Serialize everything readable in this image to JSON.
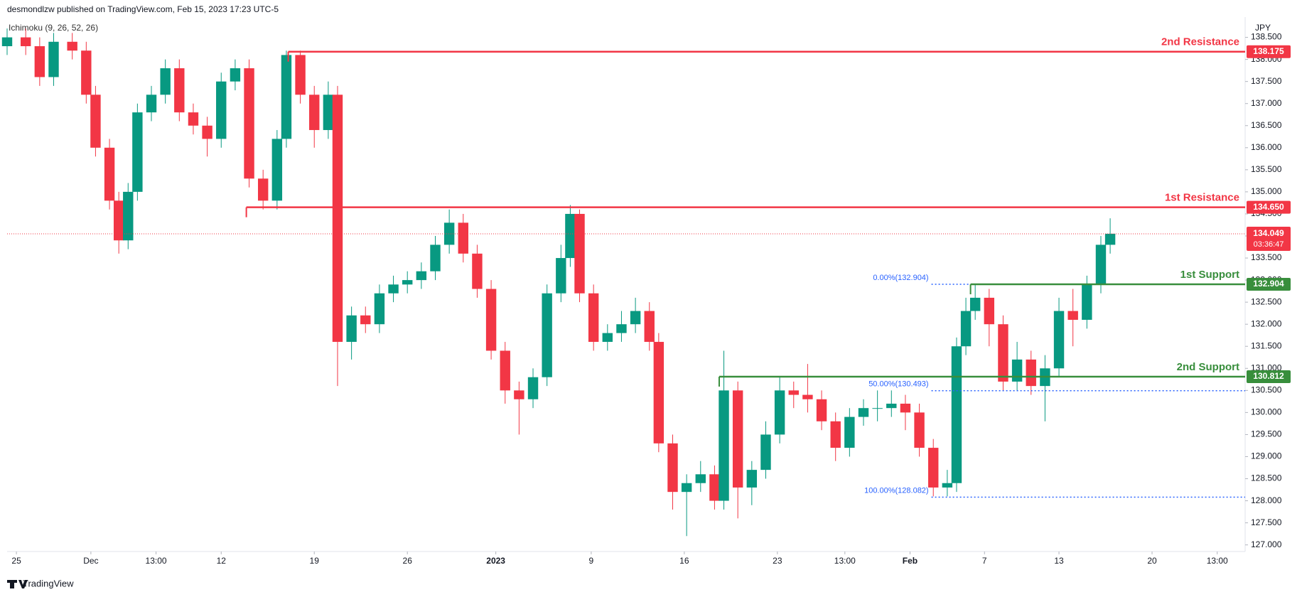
{
  "header": {
    "byline": "desmondlzw published on TradingView.com, Feb 15, 2023 17:23 UTC-5",
    "indicator": "Ichimoku (9, 26, 52, 26)",
    "currency": "JPY",
    "footer": "TradingView"
  },
  "chart_data": {
    "type": "candlestick",
    "x": [
      0,
      4,
      7,
      10,
      14,
      17,
      19,
      22,
      24,
      26,
      28,
      31,
      34,
      37,
      40,
      43,
      46,
      49,
      52,
      55,
      58,
      60,
      63,
      66,
      69,
      71,
      74,
      77,
      80,
      83,
      86,
      89,
      92,
      95,
      98,
      101,
      104,
      107,
      110,
      113,
      116,
      119,
      121,
      123,
      126,
      129,
      132,
      135,
      138,
      140,
      143,
      146,
      149,
      152,
      154,
      157,
      160,
      163,
      166,
      169,
      172,
      175,
      178,
      181,
      184,
      187,
      190,
      193,
      196,
      199,
      202,
      204,
      206,
      208,
      211,
      214,
      217,
      220,
      223,
      226,
      229,
      232,
      235,
      237
    ],
    "open": [
      138.3,
      138.5,
      138.3,
      137.6,
      138.4,
      138.2,
      137.2,
      136.0,
      134.8,
      133.9,
      135.0,
      136.8,
      137.2,
      137.8,
      136.8,
      136.5,
      136.2,
      137.5,
      137.8,
      135.3,
      134.8,
      136.2,
      138.1,
      137.2,
      136.4,
      137.2,
      131.6,
      132.2,
      132.0,
      132.7,
      132.9,
      133.0,
      133.2,
      133.8,
      134.3,
      133.6,
      132.8,
      131.4,
      130.5,
      130.3,
      130.8,
      132.7,
      133.5,
      134.5,
      132.7,
      131.6,
      131.8,
      132.0,
      132.3,
      131.6,
      129.3,
      128.2,
      128.4,
      128.6,
      128.0,
      130.5,
      128.3,
      128.7,
      129.5,
      130.5,
      130.4,
      130.3,
      129.8,
      129.2,
      129.9,
      130.1,
      130.1,
      130.2,
      130.0,
      129.2,
      128.3,
      128.4,
      131.5,
      132.3,
      132.6,
      132.0,
      130.7,
      131.2,
      130.6,
      131.0,
      132.3,
      132.1,
      132.9,
      133.8
    ],
    "high": [
      138.7,
      138.7,
      138.5,
      138.6,
      138.6,
      138.4,
      137.4,
      136.2,
      135.0,
      135.2,
      137.0,
      137.4,
      138.0,
      138.0,
      137.0,
      136.7,
      137.7,
      138.0,
      138.0,
      135.5,
      136.4,
      138.2,
      138.2,
      137.4,
      137.5,
      137.4,
      132.4,
      132.4,
      132.9,
      133.1,
      133.2,
      133.4,
      134.0,
      134.6,
      134.5,
      133.8,
      133.0,
      131.6,
      130.7,
      131.0,
      132.9,
      133.8,
      134.7,
      134.6,
      132.9,
      132.0,
      132.3,
      132.6,
      132.5,
      131.8,
      129.5,
      128.6,
      128.9,
      128.8,
      131.4,
      130.7,
      128.9,
      129.8,
      130.8,
      130.7,
      131.1,
      130.5,
      130.0,
      130.1,
      130.3,
      130.5,
      130.5,
      130.4,
      130.2,
      129.4,
      128.7,
      131.7,
      132.6,
      132.9,
      132.8,
      132.2,
      131.6,
      131.4,
      131.3,
      132.6,
      132.8,
      133.1,
      134.0,
      134.4
    ],
    "low": [
      138.1,
      138.1,
      137.4,
      137.4,
      138.0,
      137.0,
      135.8,
      134.6,
      133.6,
      133.7,
      134.8,
      136.6,
      137.0,
      136.6,
      136.3,
      135.8,
      136.0,
      137.3,
      135.1,
      134.6,
      134.6,
      136.0,
      137.0,
      136.0,
      136.2,
      130.6,
      131.2,
      131.8,
      131.8,
      132.5,
      132.7,
      132.8,
      133.0,
      133.6,
      133.4,
      132.6,
      131.2,
      130.2,
      129.5,
      130.1,
      130.6,
      132.5,
      133.3,
      132.5,
      131.4,
      131.4,
      131.6,
      131.8,
      131.4,
      129.1,
      127.8,
      127.2,
      128.2,
      127.8,
      127.8,
      127.6,
      127.9,
      128.5,
      129.3,
      130.1,
      130.0,
      129.6,
      128.9,
      129.0,
      129.7,
      129.8,
      129.9,
      129.6,
      129.0,
      128.1,
      128.1,
      128.2,
      131.3,
      132.1,
      131.5,
      130.5,
      130.5,
      130.4,
      129.8,
      130.8,
      131.5,
      131.9,
      132.7,
      133.6
    ],
    "close": [
      138.5,
      138.3,
      137.6,
      138.4,
      138.2,
      137.2,
      136.0,
      134.8,
      133.9,
      135.0,
      136.8,
      137.2,
      137.8,
      136.8,
      136.5,
      136.2,
      137.5,
      137.8,
      135.3,
      134.8,
      136.2,
      138.1,
      137.2,
      136.4,
      137.2,
      131.6,
      132.2,
      132.0,
      132.7,
      132.9,
      133.0,
      133.2,
      133.8,
      134.3,
      133.6,
      132.8,
      131.4,
      130.5,
      130.3,
      130.8,
      132.7,
      133.5,
      134.5,
      132.7,
      131.6,
      131.8,
      132.0,
      132.3,
      131.6,
      129.3,
      128.2,
      128.4,
      128.6,
      128.0,
      130.5,
      128.3,
      128.7,
      129.5,
      130.5,
      130.4,
      130.3,
      129.8,
      129.2,
      129.9,
      130.1,
      130.1,
      130.2,
      130.0,
      129.2,
      128.3,
      128.4,
      131.5,
      132.3,
      132.6,
      132.0,
      130.7,
      131.2,
      130.6,
      131.0,
      132.3,
      132.1,
      132.9,
      133.8,
      134.05
    ],
    "up_color": "#089981",
    "down_color": "#f23645",
    "xlim": [
      0,
      266
    ],
    "xticks": [
      {
        "value": 2,
        "label": "25"
      },
      {
        "value": 18,
        "label": "Dec"
      },
      {
        "value": 32,
        "label": "13:00"
      },
      {
        "value": 46,
        "label": "12"
      },
      {
        "value": 66,
        "label": "19"
      },
      {
        "value": 86,
        "label": "26"
      },
      {
        "value": 105,
        "label": "2023"
      },
      {
        "value": 125.5,
        "label": "9"
      },
      {
        "value": 145.5,
        "label": "16"
      },
      {
        "value": 165.5,
        "label": "23"
      },
      {
        "value": 180,
        "label": "13:00"
      },
      {
        "value": 194,
        "label": "Feb"
      },
      {
        "value": 210,
        "label": "7"
      },
      {
        "value": 226,
        "label": "13"
      },
      {
        "value": 246,
        "label": "20"
      },
      {
        "value": 260,
        "label": "13:00"
      }
    ],
    "ylim": [
      126.85,
      138.96
    ],
    "yticks": [
      {
        "value": 127,
        "label": "127.000"
      },
      {
        "value": 127.5,
        "label": "127.500"
      },
      {
        "value": 128,
        "label": "128.000"
      },
      {
        "value": 128.5,
        "label": "128.500"
      },
      {
        "value": 129,
        "label": "129.000"
      },
      {
        "value": 129.5,
        "label": "129.500"
      },
      {
        "value": 130,
        "label": "130.000"
      },
      {
        "value": 130.5,
        "label": "130.500"
      },
      {
        "value": 131,
        "label": "131.000"
      },
      {
        "value": 131.5,
        "label": "131.500"
      },
      {
        "value": 132,
        "label": "132.000"
      },
      {
        "value": 132.5,
        "label": "132.500"
      },
      {
        "value": 133,
        "label": "133.000"
      },
      {
        "value": 133.5,
        "label": "133.500"
      },
      {
        "value": 134,
        "label": "134.000"
      },
      {
        "value": 134.5,
        "label": "134.500"
      },
      {
        "value": 135,
        "label": "135.000"
      },
      {
        "value": 135.5,
        "label": "135.500"
      },
      {
        "value": 136,
        "label": "136.000"
      },
      {
        "value": 136.5,
        "label": "136.500"
      },
      {
        "value": 137,
        "label": "137.000"
      },
      {
        "value": 137.5,
        "label": "137.500"
      },
      {
        "value": 138,
        "label": "138.000"
      },
      {
        "value": 138.5,
        "label": "138.500"
      }
    ],
    "levels": [
      {
        "name": "2nd Resistance",
        "value": 138.175,
        "label": "138.175",
        "start": 60.4,
        "color": "#f23645"
      },
      {
        "name": "1st Resistance",
        "value": 134.65,
        "label": "134.650",
        "start": 51.4,
        "color": "#f23645"
      },
      {
        "name": "1st Support",
        "value": 132.904,
        "label": "132.904",
        "start": 207,
        "color": "#388e3c"
      },
      {
        "name": "2nd Support",
        "value": 130.812,
        "label": "130.812",
        "start": 153,
        "color": "#388e3c"
      }
    ],
    "fib": {
      "start": 198.6,
      "color": "#2962ff",
      "values": [
        132.904,
        130.493,
        128.082
      ],
      "labels": [
        "0.00%(132.904)",
        "50.00%(130.493)",
        "100.00%(128.082)"
      ]
    },
    "last": {
      "value": 134.049,
      "countdown": "03:36:47",
      "color": "#f23645"
    }
  }
}
